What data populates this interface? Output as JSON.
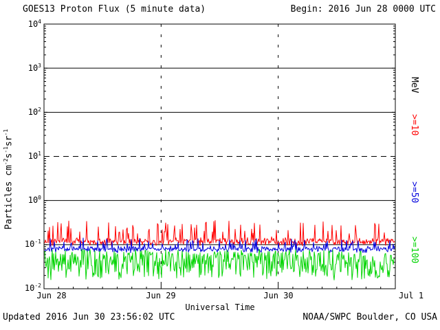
{
  "header": {
    "begin": "Begin: 2016 Jun 28 0000 UTC"
  },
  "footer": {
    "updated": "Updated 2016 Jun 30 23:56:02 UTC",
    "credit": "NOAA/SWPC Boulder, CO USA"
  },
  "chart_data": {
    "type": "line",
    "title": "GOES13 Proton Flux (5 minute data)",
    "subtitle": "",
    "xlabel": "Universal Time",
    "ylabel_parts": {
      "p1": "Particles cm",
      "e1": "-2",
      "p2": "s",
      "e2": "-1",
      "p3": "sr",
      "e3": "-1"
    },
    "unit_label": "MeV",
    "y_scale": "log",
    "ylim": [
      0.01,
      10000
    ],
    "y_tick_base": "10",
    "y_tick_exponents": [
      "4",
      "3",
      "2",
      "1",
      "0",
      "-1",
      "-2"
    ],
    "x_ticks": [
      "Jun 28",
      "Jun 29",
      "Jun 30",
      "Jul 1"
    ],
    "x_range_days": 3,
    "sample_interval": "5 minute",
    "grid": {
      "solid_decade_exponents": [
        3,
        2,
        0,
        -1
      ],
      "dashed_decade_exponents": [
        1
      ],
      "vertical_dashed_day_indices": [
        1,
        2
      ]
    },
    "legend_position": "right",
    "series": [
      {
        "name": ">=10",
        "color": "#ff0000",
        "approx_flux_range": [
          0.09,
          0.32
        ],
        "typical_flux": 0.12
      },
      {
        "name": ">=50",
        "color": "#0000dd",
        "approx_flux_range": [
          0.065,
          0.15
        ],
        "typical_flux": 0.08
      },
      {
        "name": ">=100",
        "color": "#00d400",
        "approx_flux_range": [
          0.017,
          0.09
        ],
        "typical_flux": 0.045
      }
    ]
  }
}
